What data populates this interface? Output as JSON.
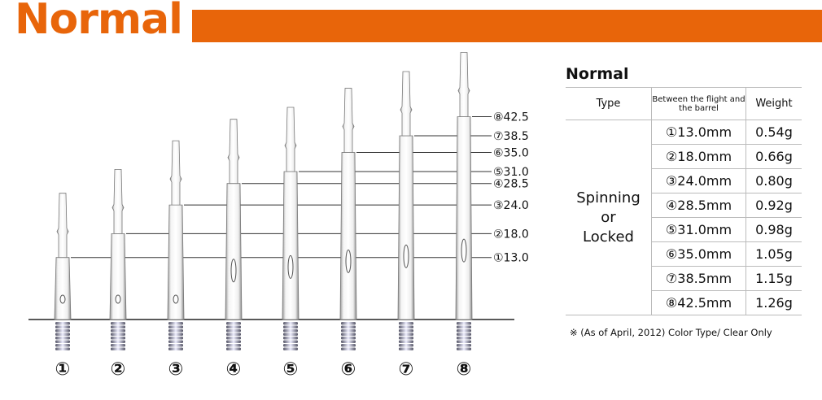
{
  "header": {
    "title": "Normal",
    "accent_color": "#e8650a"
  },
  "diagram": {
    "shafts": [
      {
        "number": "①",
        "length_label": "①13.0",
        "length_mm": 13.0
      },
      {
        "number": "②",
        "length_label": "②18.0",
        "length_mm": 18.0
      },
      {
        "number": "③",
        "length_label": "③24.0",
        "length_mm": 24.0
      },
      {
        "number": "④",
        "length_label": "④28.5",
        "length_mm": 28.5
      },
      {
        "number": "⑤",
        "length_label": "⑤31.0",
        "length_mm": 31.0
      },
      {
        "number": "⑥",
        "length_label": "⑥35.0",
        "length_mm": 35.0
      },
      {
        "number": "⑦",
        "length_label": "⑦38.5",
        "length_mm": 38.5
      },
      {
        "number": "⑧",
        "length_label": "⑧42.5",
        "length_mm": 42.5
      }
    ]
  },
  "table": {
    "title": "Normal",
    "headers": {
      "type": "Type",
      "length": "Between the flight and the barrel",
      "weight": "Weight"
    },
    "type_lines": [
      "Spinning",
      "or",
      "Locked"
    ],
    "rows": [
      {
        "length": "①13.0mm",
        "weight": "0.54g"
      },
      {
        "length": "②18.0mm",
        "weight": "0.66g"
      },
      {
        "length": "③24.0mm",
        "weight": "0.80g"
      },
      {
        "length": "④28.5mm",
        "weight": "0.92g"
      },
      {
        "length": "⑤31.0mm",
        "weight": "0.98g"
      },
      {
        "length": "⑥35.0mm",
        "weight": "1.05g"
      },
      {
        "length": "⑦38.5mm",
        "weight": "1.15g"
      },
      {
        "length": "⑧42.5mm",
        "weight": "1.26g"
      }
    ],
    "note": "※ (As of April, 2012) Color Type/ Clear Only"
  }
}
